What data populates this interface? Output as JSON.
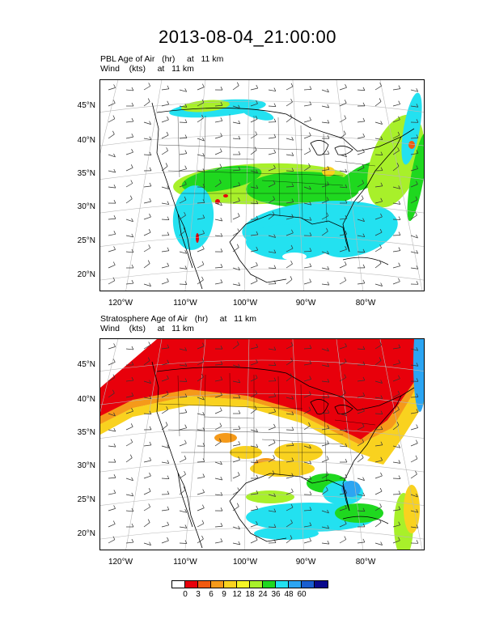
{
  "title": "2013-08-04_21:00:00",
  "panels": [
    {
      "line1": "PBL Age of Air   (hr)     at   11 km",
      "line2": "Wind    (kts)     at   11 km",
      "field": "pbl"
    },
    {
      "line1": "Stratosphere Age of Air   (hr)     at   11 km",
      "line2": "Wind    (kts)     at   11 km",
      "field": "strat"
    }
  ],
  "lat_labels": [
    "45°N",
    "40°N",
    "35°N",
    "30°N",
    "25°N",
    "20°N"
  ],
  "lon_labels": [
    "120°W",
    "110°W",
    "100°W",
    "90°W",
    "80°W"
  ],
  "colorbar": {
    "levels": [
      "0",
      "3",
      "6",
      "9",
      "12",
      "18",
      "24",
      "36",
      "48",
      "60"
    ],
    "colors": [
      "#ffffff",
      "#e8000b",
      "#f25a10",
      "#f59a1a",
      "#f9d21f",
      "#f5f525",
      "#a8f02a",
      "#1fd81f",
      "#23e1f0",
      "#2ca5f2",
      "#1a5fcf",
      "#0a0a8c"
    ]
  }
}
